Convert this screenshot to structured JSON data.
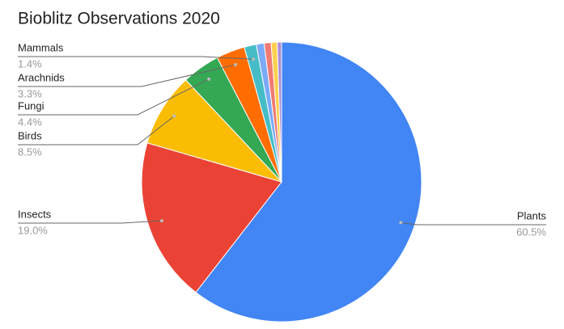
{
  "chart_data": {
    "type": "pie",
    "title": "Bioblitz Observations 2020",
    "categories": [
      "Plants",
      "Insects",
      "Birds",
      "Fungi",
      "Arachnids",
      "Mammals",
      null,
      null,
      null,
      null
    ],
    "values": [
      60.5,
      19.0,
      8.5,
      4.4,
      3.3,
      1.4,
      0.9,
      0.8,
      0.7,
      0.5
    ],
    "value_labels": [
      "60.5%",
      "19.0%",
      "8.5%",
      "4.4%",
      "3.3%",
      "1.4%",
      null,
      null,
      null,
      null
    ],
    "colors": [
      "#4285f4",
      "#ea4335",
      "#fbbc04",
      "#34a853",
      "#ff6d01",
      "#46bdc6",
      "#7baaf7",
      "#f07b72",
      "#fcd04f",
      "#ab8ed8"
    ]
  }
}
